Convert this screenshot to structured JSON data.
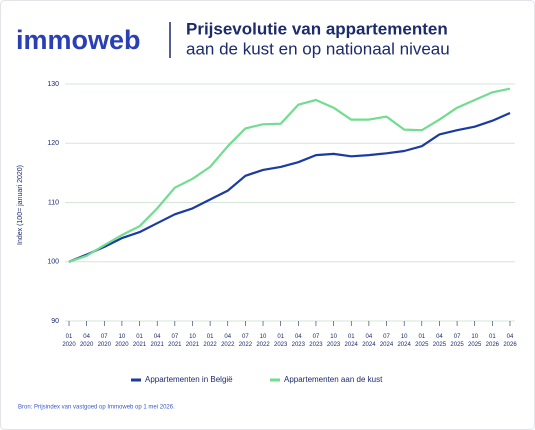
{
  "logo": "immoweb",
  "chart_data": {
    "type": "line",
    "title": "Prijsevolutie van appartementen",
    "subtitle": "aan de kust en op nationaal niveau",
    "y_label": "Index (100= januari 2020)",
    "source": "Bron: Prijsindex van vastgoed op Immoweb op 1 mei 2026.",
    "categories": [
      "01 2020",
      "04 2020",
      "07 2020",
      "10 2020",
      "01 2021",
      "04 2021",
      "07 2021",
      "10 2021",
      "01 2022",
      "04 2022",
      "07 2022",
      "10 2022",
      "01 2023",
      "04 2023",
      "07 2023",
      "10 2023",
      "01 2024",
      "04 2024",
      "07 2024",
      "10 2024",
      "01 2025",
      "04 2025",
      "07 2025",
      "10 2025",
      "01 2026",
      "04 2026"
    ],
    "series": [
      {
        "name": "Appartementen in België",
        "color": "#1b3ba3",
        "values": [
          100,
          101.2,
          102.5,
          104,
          105,
          106.5,
          108,
          109,
          110.5,
          112,
          114.5,
          115.5,
          116,
          116.8,
          118,
          118.2,
          117.8,
          118,
          118.3,
          118.7,
          119.5,
          121.5,
          122.2,
          122.8,
          123.8,
          125.1
        ]
      },
      {
        "name": "Appartementen aan de kust",
        "color": "#72dc8f",
        "values": [
          100,
          101,
          102.8,
          104.5,
          106,
          109,
          112.5,
          114,
          116,
          119.5,
          122.5,
          123.2,
          123.3,
          126.5,
          127.3,
          126,
          124,
          124,
          124.5,
          122.3,
          122.2,
          124,
          126,
          127.3,
          128.6,
          129.2
        ]
      }
    ],
    "ylim": [
      90,
      130
    ],
    "yticks": [
      90,
      100,
      110,
      120,
      130
    ],
    "grid": true
  }
}
